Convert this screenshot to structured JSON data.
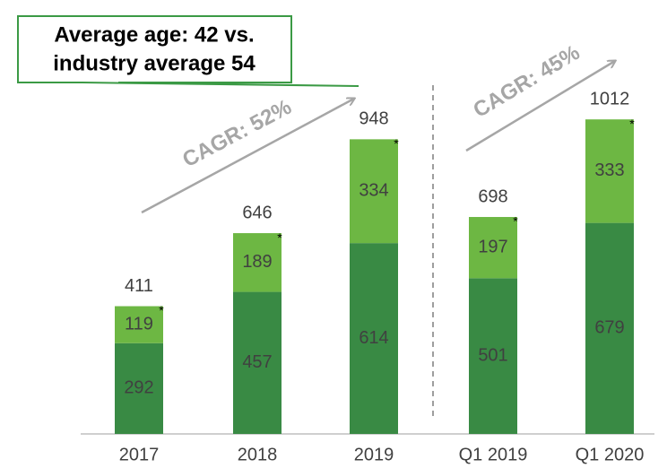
{
  "chart_data": {
    "type": "stacked_bar",
    "categories": [
      "2017",
      "2018",
      "2019",
      "Q1 2019",
      "Q1 2020"
    ],
    "series": [
      {
        "color": "#398a44",
        "values": [
          292,
          457,
          614,
          501,
          679
        ]
      },
      {
        "color": "#6db743",
        "values": [
          119,
          189,
          334,
          197,
          333
        ]
      }
    ],
    "totals": [
      411,
      646,
      948,
      698,
      1012
    ],
    "footnote_marker": "*",
    "ylim": [
      0,
      1050
    ],
    "annotations": {
      "callout": [
        "Average age: 42 vs.",
        "industry average 54"
      ],
      "cagr_left": "CAGR: 52%",
      "cagr_right": "CAGR: 45%"
    }
  }
}
